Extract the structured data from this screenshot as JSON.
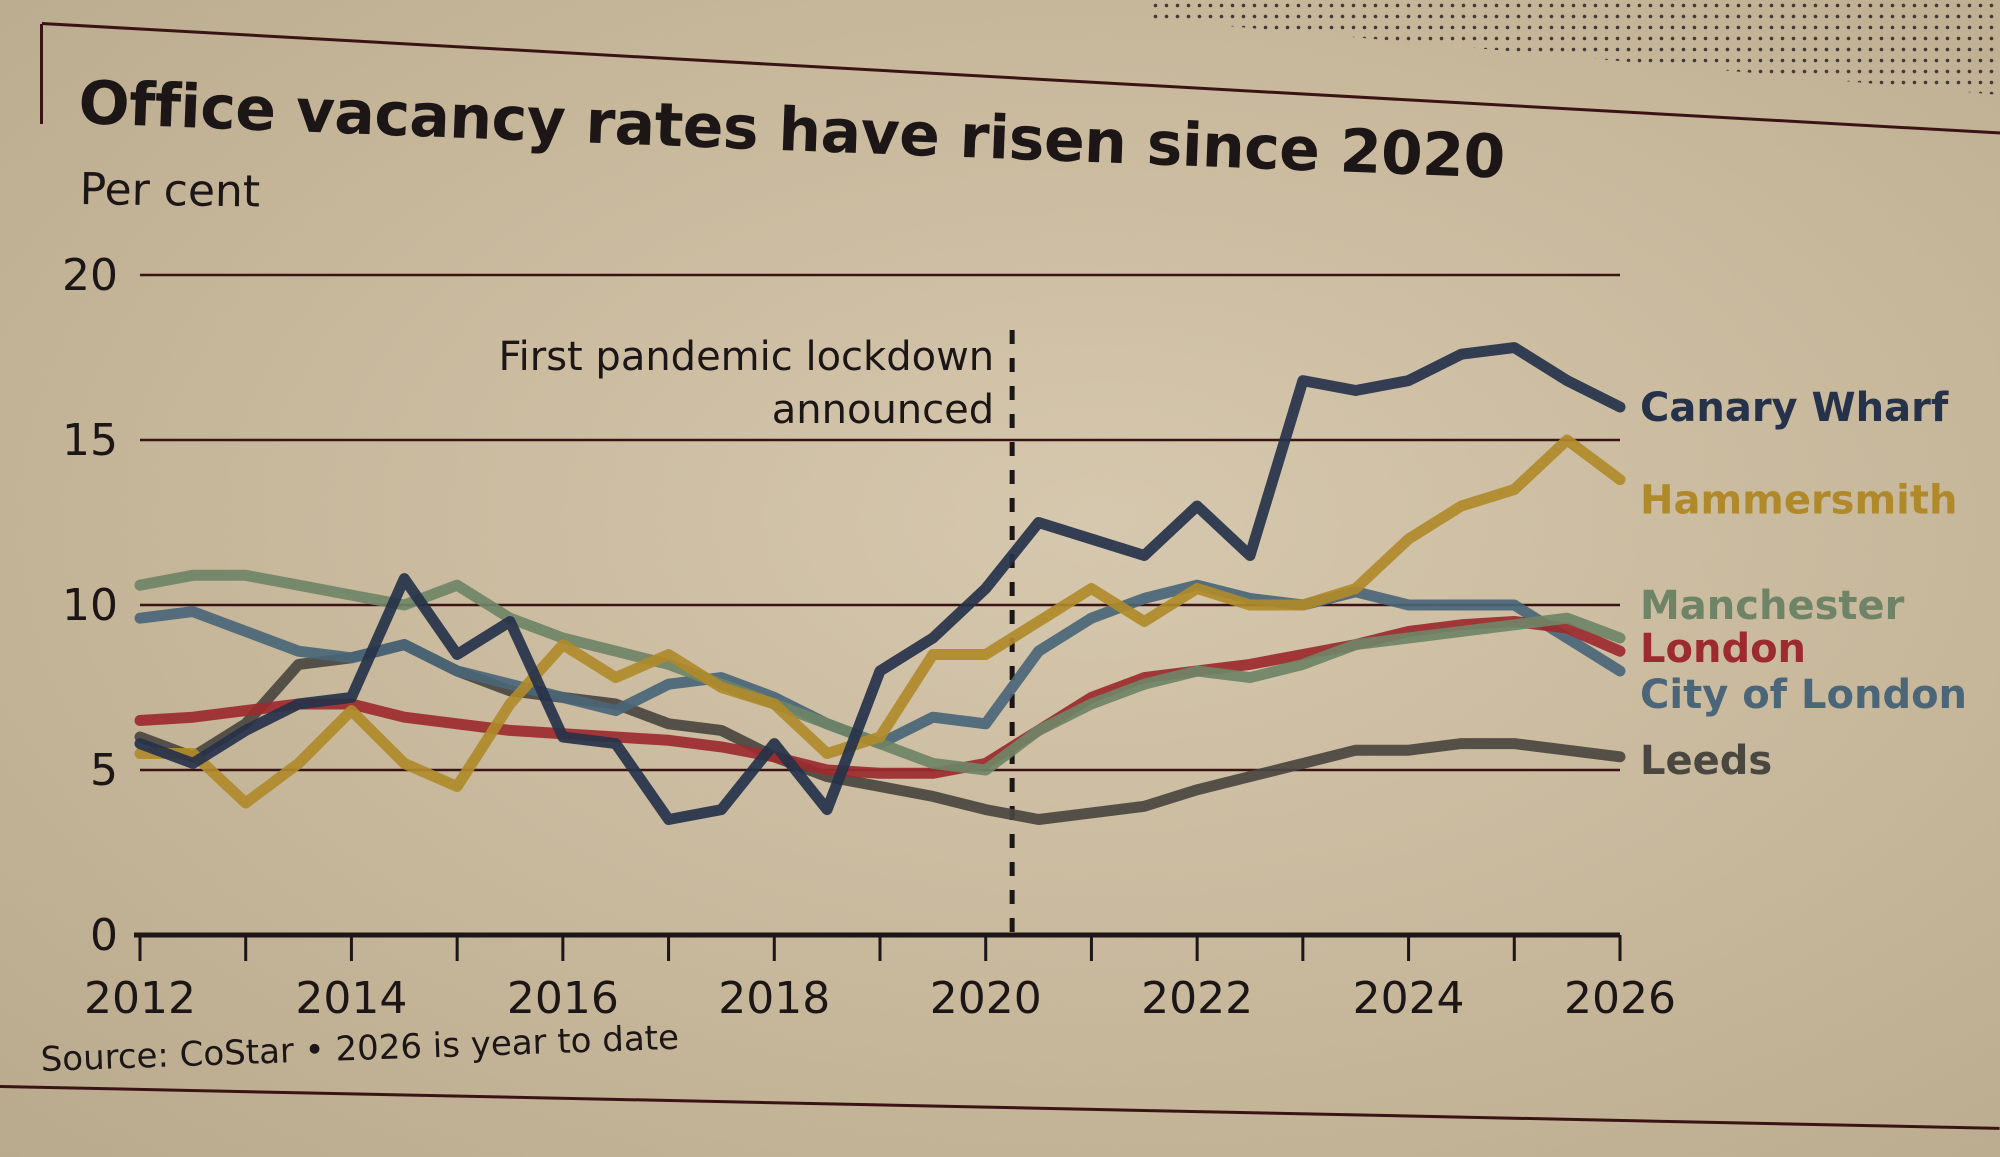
{
  "chart_data": {
    "type": "line",
    "title": "Office vacancy rates have risen since 2020",
    "subtitle": "Per cent",
    "ylabel": "Per cent",
    "xlabel": "",
    "source": "Source: CoStar • 2026 is year to date",
    "xlim": [
      2012,
      2026
    ],
    "ylim": [
      0,
      20
    ],
    "x_ticks": [
      2012,
      2014,
      2016,
      2018,
      2020,
      2022,
      2024,
      2026
    ],
    "x_tick_labels": [
      "2012",
      "2014",
      "2016",
      "2018",
      "2020",
      "2022",
      "2024",
      "2026"
    ],
    "y_ticks": [
      0,
      5,
      10,
      15,
      20
    ],
    "y_tick_labels": [
      "0",
      "5",
      "10",
      "15",
      "20"
    ],
    "grid": "horizontal",
    "legend": "right (direct labels at line ends)",
    "annotation": {
      "x": 2020.25,
      "lines": [
        "First pandemic lockdown",
        "announced"
      ]
    },
    "x": [
      2012,
      2012.5,
      2013,
      2013.5,
      2014,
      2014.5,
      2015,
      2015.5,
      2016,
      2016.5,
      2017,
      2017.5,
      2018,
      2018.5,
      2019,
      2019.5,
      2020,
      2020.5,
      2021,
      2021.5,
      2022,
      2022.5,
      2023,
      2023.5,
      2024,
      2024.5,
      2025,
      2025.5,
      2026
    ],
    "series": [
      {
        "name": "Canary Wharf",
        "color": "#26324a",
        "values": [
          5.8,
          5.2,
          6.2,
          7.0,
          7.2,
          10.8,
          8.5,
          9.5,
          6.0,
          5.8,
          3.5,
          3.8,
          5.8,
          3.8,
          8.0,
          9.0,
          10.5,
          12.5,
          12.0,
          11.5,
          13.0,
          11.5,
          16.8,
          16.5,
          16.8,
          17.6,
          17.8,
          16.8,
          16.0
        ]
      },
      {
        "name": "Hammersmith",
        "color": "#b08a2a",
        "values": [
          5.5,
          5.5,
          4.0,
          5.2,
          6.8,
          5.2,
          4.5,
          7.0,
          8.8,
          7.8,
          8.5,
          7.5,
          7.0,
          5.5,
          6.0,
          8.5,
          8.5,
          9.5,
          10.5,
          9.5,
          10.5,
          10.0,
          10.0,
          10.5,
          12.0,
          13.0,
          13.5,
          15.0,
          13.8
        ]
      },
      {
        "name": "Manchester",
        "color": "#6f8466",
        "values": [
          10.6,
          10.9,
          10.9,
          10.6,
          10.3,
          10.0,
          10.6,
          9.6,
          9.0,
          8.6,
          8.2,
          7.6,
          7.0,
          6.4,
          5.8,
          5.2,
          5.0,
          6.2,
          7.0,
          7.6,
          8.0,
          7.8,
          8.2,
          8.8,
          9.0,
          9.2,
          9.4,
          9.6,
          9.0
        ]
      },
      {
        "name": "London",
        "color": "#9c2a2e",
        "values": [
          6.5,
          6.6,
          6.8,
          7.0,
          7.0,
          6.6,
          6.4,
          6.2,
          6.1,
          6.0,
          5.9,
          5.7,
          5.4,
          5.0,
          4.9,
          4.9,
          5.2,
          6.2,
          7.2,
          7.8,
          8.0,
          8.2,
          8.5,
          8.8,
          9.2,
          9.4,
          9.5,
          9.3,
          8.6
        ]
      },
      {
        "name": "City of London",
        "color": "#4a6678",
        "values": [
          9.6,
          9.8,
          9.2,
          8.6,
          8.4,
          8.8,
          8.0,
          7.6,
          7.2,
          6.8,
          7.6,
          7.8,
          7.2,
          6.4,
          5.8,
          6.6,
          6.4,
          8.6,
          9.6,
          10.2,
          10.6,
          10.2,
          10.0,
          10.4,
          10.0,
          10.0,
          10.0,
          9.0,
          8.0
        ]
      },
      {
        "name": "Leeds",
        "color": "#4a4640",
        "values": [
          6.0,
          5.4,
          6.4,
          8.2,
          8.4,
          8.8,
          8.0,
          7.4,
          7.2,
          7.0,
          6.4,
          6.2,
          5.4,
          4.8,
          4.5,
          4.2,
          3.8,
          3.5,
          3.7,
          3.9,
          4.4,
          4.8,
          5.2,
          5.6,
          5.6,
          5.8,
          5.8,
          5.6,
          5.4
        ]
      }
    ]
  }
}
